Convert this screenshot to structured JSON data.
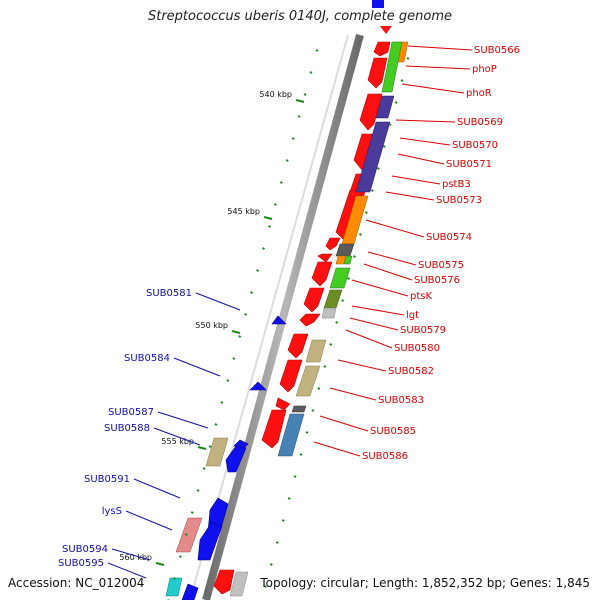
{
  "title": "Streptococcus uberis 0140J, complete genome",
  "accession": "Accession: NC_012004",
  "topology": "Topology: circular; Length: 1,852,352 bp; Genes: 1,845",
  "ruler_labels": [
    "540 kbp",
    "545 kbp",
    "550 kbp",
    "555 kbp",
    "560 kbp"
  ],
  "forward_gene_labels": [
    "SUB0566",
    "phoP",
    "phoR",
    "SUB0569",
    "SUB0570",
    "SUB0571",
    "pstB3",
    "SUB0573",
    "SUB0574",
    "SUB0575",
    "SUB0576",
    "ptsK",
    "lgt",
    "SUB0579",
    "SUB0580",
    "SUB0582",
    "SUB0583",
    "SUB0585",
    "SUB0586"
  ],
  "reverse_gene_labels": [
    "SUB0581",
    "SUB0584",
    "SUB0587",
    "SUB0588",
    "SUB0591",
    "lysS",
    "SUB0594",
    "SUB0595"
  ],
  "colors": {
    "forward_label": "#e00000",
    "reverse_label": "#1010b0",
    "forward_gene": "#ff1010",
    "reverse_gene": "#1010ee",
    "backbone": "#808080",
    "tick": "#1a8a1a"
  },
  "cog_colors": [
    "#ff8c00",
    "#44cc22",
    "#4a3a99",
    "#6a8e23",
    "#5a5a5a",
    "#c2b280",
    "#4682b4",
    "#e38a8a",
    "#22cccc",
    "#c0c0c0"
  ]
}
